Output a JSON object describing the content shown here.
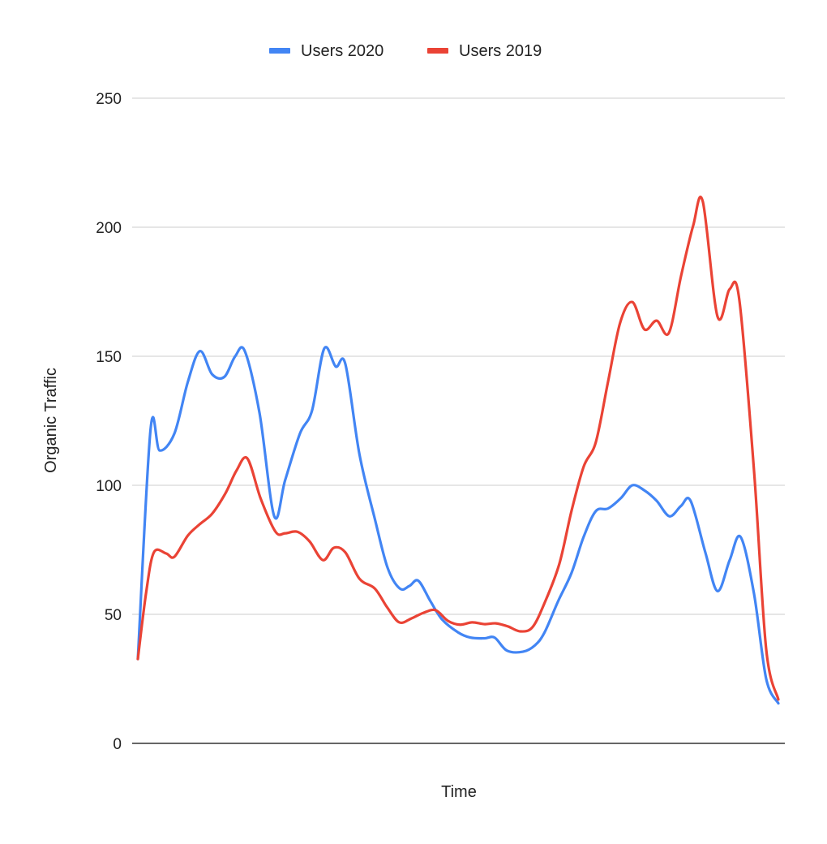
{
  "chart_data": {
    "type": "line",
    "title": "",
    "xlabel": "Time",
    "ylabel": "Organic Traffic",
    "ylim": [
      0,
      250
    ],
    "xlim": [
      0,
      100
    ],
    "yticks": [
      "0",
      "50",
      "100",
      "150",
      "200",
      "250"
    ],
    "ytick_values": [
      0,
      50,
      100,
      150,
      200,
      250
    ],
    "grid": true,
    "legend_position": "top",
    "series": [
      {
        "name": "Users 2020",
        "color": "#4285F4",
        "points": [
          [
            0,
            32.7
          ],
          [
            2.0,
            122
          ],
          [
            3.4,
            113.5
          ],
          [
            5.7,
            120
          ],
          [
            7.8,
            140
          ],
          [
            9.7,
            152
          ],
          [
            11.6,
            143
          ],
          [
            13.5,
            142
          ],
          [
            15.2,
            150
          ],
          [
            16.7,
            152
          ],
          [
            19.0,
            128
          ],
          [
            21.3,
            88
          ],
          [
            23.0,
            102
          ],
          [
            25.3,
            120
          ],
          [
            27.2,
            129
          ],
          [
            29.1,
            153
          ],
          [
            30.9,
            146
          ],
          [
            32.4,
            147
          ],
          [
            34.6,
            112
          ],
          [
            37.0,
            87
          ],
          [
            39.0,
            68
          ],
          [
            40.9,
            60
          ],
          [
            42.4,
            61
          ],
          [
            43.8,
            63
          ],
          [
            45.7,
            55
          ],
          [
            47.5,
            48
          ],
          [
            50.0,
            43
          ],
          [
            51.9,
            41
          ],
          [
            54.1,
            40.7
          ],
          [
            55.7,
            41
          ],
          [
            57.6,
            36
          ],
          [
            60.1,
            35.5
          ],
          [
            62.0,
            38
          ],
          [
            63.5,
            43
          ],
          [
            65.6,
            55
          ],
          [
            67.7,
            66
          ],
          [
            69.6,
            80
          ],
          [
            71.5,
            90
          ],
          [
            73.4,
            91
          ],
          [
            75.4,
            95
          ],
          [
            77.2,
            100
          ],
          [
            79.1,
            98
          ],
          [
            81.0,
            94
          ],
          [
            83.0,
            88
          ],
          [
            84.8,
            92
          ],
          [
            86.3,
            94
          ],
          [
            88.6,
            74
          ],
          [
            90.5,
            59
          ],
          [
            92.4,
            71
          ],
          [
            94.1,
            80
          ],
          [
            96.2,
            58
          ],
          [
            98.1,
            25
          ],
          [
            100,
            15.5
          ]
        ]
      },
      {
        "name": "Users 2019",
        "color": "#EA4335",
        "points": [
          [
            0,
            32.7
          ],
          [
            1.3,
            58.5
          ],
          [
            2.5,
            74
          ],
          [
            4.4,
            73.6
          ],
          [
            5.7,
            72.3
          ],
          [
            7.8,
            80.5
          ],
          [
            9.7,
            85
          ],
          [
            11.6,
            89
          ],
          [
            13.7,
            97
          ],
          [
            15.4,
            105.7
          ],
          [
            17.1,
            110.4
          ],
          [
            19.2,
            94.7
          ],
          [
            21.5,
            82
          ],
          [
            23.0,
            81.4
          ],
          [
            24.9,
            82
          ],
          [
            26.8,
            78.3
          ],
          [
            28.9,
            71
          ],
          [
            30.6,
            75.8
          ],
          [
            32.4,
            74
          ],
          [
            34.6,
            63.8
          ],
          [
            37.0,
            60
          ],
          [
            38.9,
            52.8
          ],
          [
            40.8,
            46.9
          ],
          [
            42.7,
            48.4
          ],
          [
            44.6,
            50.6
          ],
          [
            46.5,
            51.6
          ],
          [
            48.4,
            47.5
          ],
          [
            50.3,
            46
          ],
          [
            52.2,
            46.9
          ],
          [
            54.1,
            46.2
          ],
          [
            55.9,
            46.5
          ],
          [
            57.8,
            45.3
          ],
          [
            59.7,
            43.4
          ],
          [
            61.6,
            45
          ],
          [
            63.5,
            54.4
          ],
          [
            65.8,
            69.5
          ],
          [
            67.7,
            90
          ],
          [
            69.6,
            107.2
          ],
          [
            71.5,
            116.7
          ],
          [
            73.4,
            140
          ],
          [
            75.3,
            163
          ],
          [
            77.2,
            171
          ],
          [
            79.1,
            160.4
          ],
          [
            81.0,
            163.8
          ],
          [
            82.9,
            159
          ],
          [
            84.8,
            181
          ],
          [
            86.7,
            200.6
          ],
          [
            88.2,
            210
          ],
          [
            90.5,
            165.4
          ],
          [
            92.4,
            176
          ],
          [
            93.9,
            172
          ],
          [
            96.2,
            105.7
          ],
          [
            98.1,
            36.5
          ],
          [
            100,
            17
          ]
        ]
      }
    ]
  }
}
